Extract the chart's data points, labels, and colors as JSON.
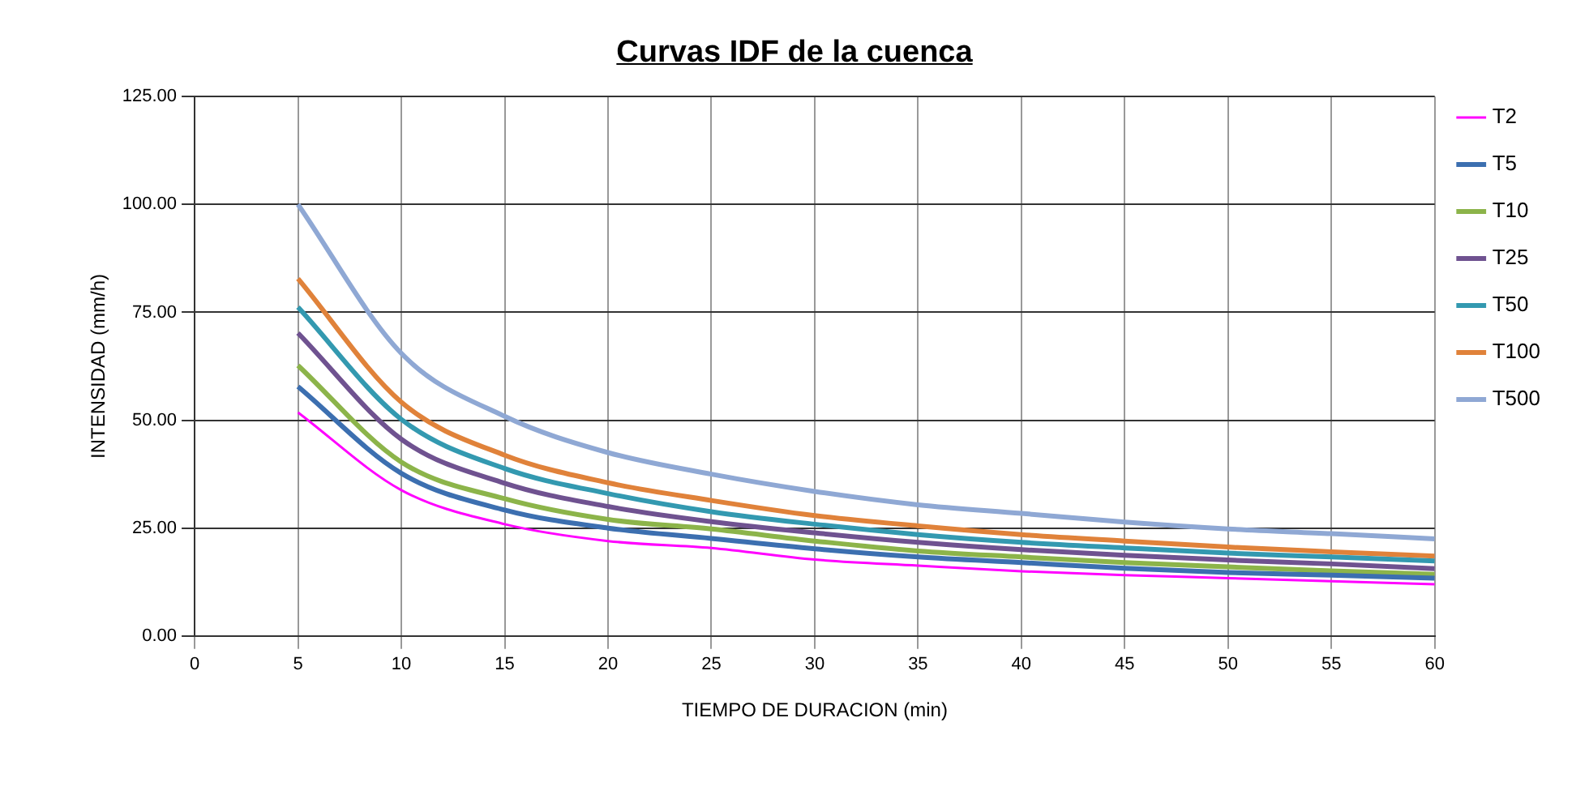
{
  "chart_data": {
    "type": "line",
    "title": "Curvas IDF de la cuenca",
    "xlabel": "TIEMPO DE DURACION (min)",
    "ylabel": "INTENSIDAD (mm/h)",
    "x": [
      5,
      10,
      15,
      20,
      25,
      30,
      35,
      40,
      45,
      50,
      55,
      60
    ],
    "series": [
      {
        "name": "T2",
        "color": "#ff00ff",
        "values": [
          51.8,
          33.8,
          25.9,
          22,
          20.4,
          17.7,
          16.3,
          15,
          14.1,
          13.4,
          12.7,
          12
        ]
      },
      {
        "name": "T5",
        "color": "#3c6fb0",
        "values": [
          57.8,
          37.7,
          29.2,
          25,
          22.6,
          20.2,
          18.3,
          17,
          15.7,
          14.7,
          14.1,
          13.4
        ]
      },
      {
        "name": "T10",
        "color": "#8cb44a",
        "values": [
          62.7,
          40.3,
          31.8,
          27,
          24.8,
          22,
          19.7,
          18.3,
          17,
          16,
          15.1,
          14.3
        ]
      },
      {
        "name": "T25",
        "color": "#6f5290",
        "values": [
          70.2,
          45.6,
          35.4,
          30,
          26.5,
          23.9,
          21.7,
          20,
          18.7,
          17.6,
          16.7,
          15.6
        ]
      },
      {
        "name": "T50",
        "color": "#3399b0",
        "values": [
          76.2,
          50.2,
          38.8,
          33,
          28.8,
          25.9,
          23.5,
          21.7,
          20.4,
          19.2,
          18.3,
          17.4
        ]
      },
      {
        "name": "T100",
        "color": "#e0823a",
        "values": [
          82.8,
          54.2,
          41.9,
          35.5,
          31.4,
          27.9,
          25.5,
          23.5,
          22,
          20.6,
          19.5,
          18.5
        ]
      },
      {
        "name": "T500",
        "color": "#8fa8d4",
        "values": [
          100,
          65.5,
          50.9,
          42.5,
          37.5,
          33.5,
          30.4,
          28.4,
          26.4,
          24.8,
          23.7,
          22.5
        ]
      }
    ],
    "xlim": [
      0,
      60
    ],
    "xticks": [
      0,
      5,
      10,
      15,
      20,
      25,
      30,
      35,
      40,
      45,
      50,
      55,
      60
    ],
    "ylim": [
      0,
      125
    ],
    "yticks": [
      {
        "value": 0,
        "label": "0.00"
      },
      {
        "value": 25,
        "label": "25.00"
      },
      {
        "value": 50,
        "label": "50.00"
      },
      {
        "value": 75,
        "label": "75.00"
      },
      {
        "value": 100,
        "label": "100.00"
      },
      {
        "value": 125,
        "label": "125.00"
      }
    ],
    "grid": true,
    "legend": "right",
    "marker": "none",
    "line_style": "solid"
  }
}
